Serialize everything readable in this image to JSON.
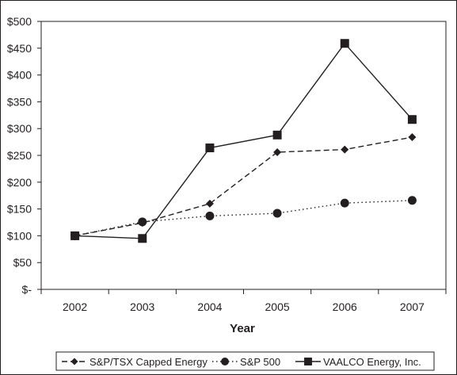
{
  "chart_data": {
    "type": "line",
    "categories": [
      "2002",
      "2003",
      "2004",
      "2005",
      "2006",
      "2007"
    ],
    "x_values": [
      2002,
      2003,
      2004,
      2005,
      2006,
      2007
    ],
    "xlabel": "Year",
    "ylabel": "",
    "ylim": [
      0,
      500
    ],
    "y_ticks": [
      0,
      50,
      100,
      150,
      200,
      250,
      300,
      350,
      400,
      450,
      500
    ],
    "y_tick_labels": [
      "$-",
      "$50",
      "$100",
      "$150",
      "$200",
      "$250",
      "$300",
      "$350",
      "$400",
      "$450",
      "$500"
    ],
    "grid": false,
    "legend_position": "bottom",
    "series": [
      {
        "name": "S&P/TSX Capped Energy",
        "values": [
          100,
          124,
          160,
          256,
          261,
          284
        ],
        "line_style": "dashed",
        "marker": "diamond",
        "color": "#231f20"
      },
      {
        "name": "S&P 500",
        "values": [
          100,
          126,
          137,
          142,
          161,
          166
        ],
        "line_style": "dotted",
        "marker": "circle",
        "color": "#231f20"
      },
      {
        "name": "VAALCO Energy, Inc.",
        "values": [
          100,
          95,
          264,
          288,
          459,
          317
        ],
        "line_style": "solid",
        "marker": "square",
        "color": "#231f20"
      }
    ]
  }
}
